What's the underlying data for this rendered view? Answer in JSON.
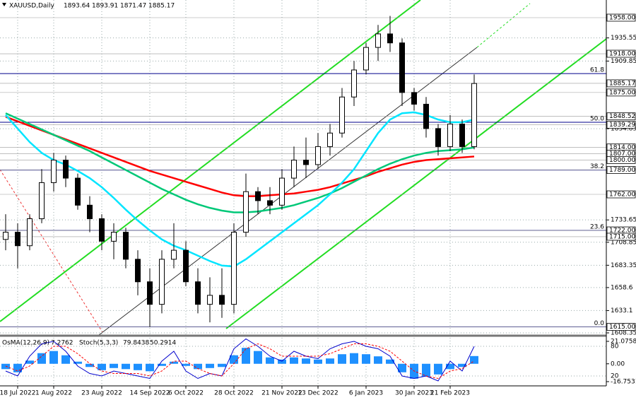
{
  "chart_data": [
    {
      "type": "candlestick",
      "title": "XAUUSD,Daily",
      "last_ohlc": [
        1893.64,
        1893.91,
        1871.47,
        1885.17
      ],
      "categories": [
        null,
        "18 Jul 2022",
        null,
        null,
        "1 Aug 2022",
        null,
        null,
        null,
        "23 Aug 2022",
        null,
        null,
        null,
        "14 Sep 2022",
        null,
        null,
        "6 Oct 2022",
        null,
        null,
        null,
        "28 Oct 2022",
        null,
        null,
        null,
        "21 Nov 2022",
        null,
        null,
        "13 Dec 2022",
        null,
        null,
        null,
        "6 Jan 2023",
        null,
        null,
        null,
        "30 Jan 2023",
        null,
        null,
        "21 Feb 2023",
        null,
        null
      ],
      "open": [
        1712,
        1720,
        1705,
        1735,
        1775,
        1800,
        1780,
        1750,
        1735,
        1710,
        1720,
        1690,
        1665,
        1640,
        1690,
        1700,
        1665,
        1640,
        1650,
        1640,
        1720,
        1765,
        1755,
        1750,
        1780,
        1800,
        1795,
        1815,
        1830,
        1870,
        1900,
        1925,
        1940,
        1930,
        1875,
        1862,
        1835,
        1815,
        1840,
        1815
      ],
      "high": [
        1740,
        1730,
        1740,
        1790,
        1808,
        1805,
        1785,
        1760,
        1740,
        1730,
        1725,
        1700,
        1680,
        1700,
        1730,
        1710,
        1680,
        1670,
        1680,
        1730,
        1785,
        1770,
        1770,
        1790,
        1815,
        1825,
        1830,
        1840,
        1880,
        1910,
        1930,
        1950,
        1960,
        1935,
        1880,
        1870,
        1840,
        1850,
        1845,
        1895
      ],
      "low": [
        1700,
        1680,
        1700,
        1730,
        1765,
        1770,
        1745,
        1720,
        1700,
        1690,
        1680,
        1650,
        1615,
        1630,
        1680,
        1660,
        1630,
        1620,
        1625,
        1630,
        1715,
        1740,
        1740,
        1745,
        1770,
        1780,
        1790,
        1805,
        1825,
        1860,
        1895,
        1910,
        1920,
        1860,
        1855,
        1825,
        1805,
        1810,
        1808,
        1812
      ],
      "close": [
        1720,
        1705,
        1735,
        1775,
        1800,
        1780,
        1750,
        1735,
        1710,
        1720,
        1690,
        1665,
        1640,
        1690,
        1700,
        1665,
        1640,
        1650,
        1640,
        1720,
        1765,
        1755,
        1750,
        1780,
        1800,
        1795,
        1815,
        1830,
        1870,
        1900,
        1925,
        1940,
        1930,
        1875,
        1862,
        1835,
        1815,
        1840,
        1815,
        1885
      ],
      "series": [
        {
          "color": "#ff0000",
          "values": [
            1848,
            1843,
            1838,
            1833,
            1828,
            1823,
            1818,
            1813,
            1808,
            1803,
            1798,
            1793,
            1788,
            1784,
            1780,
            1776,
            1772,
            1768,
            1764,
            1761,
            1760,
            1760,
            1761,
            1762,
            1763,
            1765,
            1767,
            1770,
            1774,
            1778,
            1782,
            1787,
            1791,
            1795,
            1798,
            1800,
            1801,
            1802,
            1803,
            1804
          ]
        },
        {
          "color": "#00c878",
          "values": [
            1852,
            1846,
            1840,
            1834,
            1828,
            1822,
            1816,
            1810,
            1803,
            1796,
            1789,
            1782,
            1775,
            1768,
            1762,
            1756,
            1751,
            1747,
            1744,
            1742,
            1742,
            1743,
            1745,
            1747,
            1750,
            1754,
            1758,
            1763,
            1769,
            1776,
            1783,
            1790,
            1796,
            1801,
            1805,
            1808,
            1810,
            1811,
            1812,
            1814
          ]
        },
        {
          "color": "#00e5ff",
          "values": [
            1850,
            1835,
            1820,
            1808,
            1800,
            1795,
            1788,
            1780,
            1770,
            1758,
            1745,
            1733,
            1722,
            1712,
            1705,
            1700,
            1694,
            1688,
            1683,
            1682,
            1690,
            1700,
            1710,
            1720,
            1730,
            1740,
            1750,
            1762,
            1775,
            1790,
            1810,
            1830,
            1845,
            1852,
            1853,
            1850,
            1845,
            1842,
            1842,
            1845
          ]
        }
      ],
      "ylim": [
        1606,
        1977.6
      ],
      "yticks": [
        1935.55,
        1909.85,
        1834.85,
        1733.65,
        1708.85,
        1683.35,
        1658.6,
        1633.1,
        1608.35
      ],
      "levels": [
        {
          "value": 1958,
          "label": "1958.00"
        },
        {
          "value": 1918,
          "label": "1918.00"
        },
        {
          "value": 1885.17,
          "label": "1885.17"
        },
        {
          "value": 1875,
          "label": "1875.00"
        },
        {
          "value": 1848.52,
          "label": "1848.52"
        },
        {
          "value": 1839.29,
          "label": "1839.29"
        },
        {
          "value": 1814,
          "label": "1814.00"
        },
        {
          "value": 1807,
          "label": "1807.00"
        },
        {
          "value": 1800,
          "label": "1800.00"
        },
        {
          "value": 1789,
          "label": "1789.00"
        },
        {
          "value": 1762,
          "label": "1762.00"
        },
        {
          "value": 1722,
          "label": "1722.00"
        },
        {
          "value": 1715,
          "label": "1715.00"
        },
        {
          "value": 1615,
          "label": "1615.00"
        }
      ],
      "fib_levels": [
        {
          "value": 1896,
          "label": "61.8"
        },
        {
          "value": 1842,
          "label": "50.0"
        },
        {
          "value": 1789,
          "label": "38.2"
        },
        {
          "value": 1722,
          "label": "23.6"
        },
        {
          "value": 1615,
          "label": "0.0"
        }
      ],
      "grid": true
    },
    {
      "type": "oscillator",
      "osma_label": "OsMA(12,26,9)",
      "stoch_label": "Stoch(5,3,3)",
      "osma": {
        "color": "#1e90ff",
        "values": [
          -5,
          -8,
          3,
          10,
          12,
          8,
          2,
          -3,
          -6,
          -4,
          -5,
          -6,
          -7,
          -2,
          2,
          -2,
          -5,
          -4,
          -3,
          8,
          15,
          12,
          6,
          4,
          6,
          5,
          4,
          5,
          9,
          10,
          9,
          7,
          4,
          -8,
          -14,
          -12,
          -10,
          -5,
          -3,
          7.2762
        ]
      },
      "stoch_main": {
        "color": "#0000cd",
        "values": [
          30,
          20,
          60,
          85,
          90,
          70,
          40,
          25,
          20,
          30,
          25,
          20,
          15,
          50,
          70,
          30,
          15,
          25,
          20,
          75,
          95,
          80,
          60,
          50,
          70,
          60,
          55,
          75,
          85,
          90,
          80,
          75,
          60,
          20,
          15,
          20,
          10,
          50,
          30,
          79.8438
        ]
      },
      "stoch_signal": {
        "color": "#ff0000",
        "values": [
          40,
          30,
          40,
          60,
          80,
          80,
          65,
          45,
          30,
          25,
          25,
          25,
          20,
          30,
          50,
          50,
          35,
          25,
          20,
          45,
          75,
          85,
          75,
          60,
          60,
          60,
          60,
          65,
          75,
          85,
          85,
          80,
          70,
          50,
          30,
          20,
          15,
          30,
          35,
          50.2914
        ]
      },
      "osma_ylim": [
        -21.4,
        24.4
      ],
      "osma_ticks": [
        21.0758,
        {
          "value": 0,
          "label": "0.00"
        },
        -16.7531
      ],
      "stoch_ylim": [
        0,
        100
      ],
      "stoch_ticks": [
        80,
        20
      ]
    }
  ]
}
